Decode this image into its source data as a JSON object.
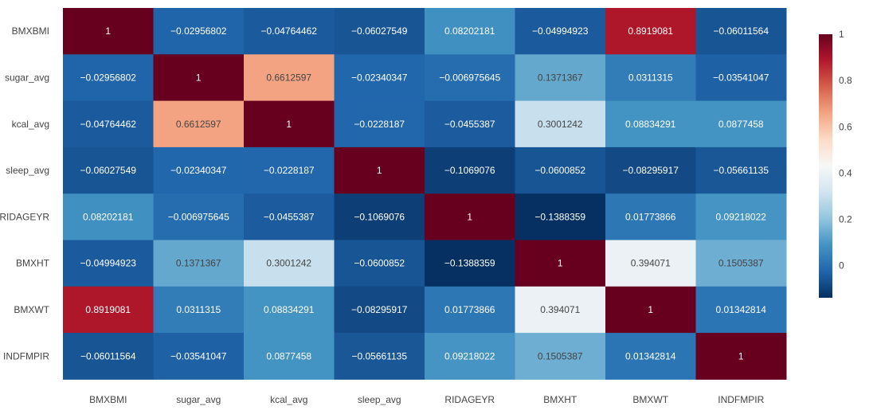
{
  "chart_data": {
    "type": "heatmap",
    "title": "",
    "xlabel": "",
    "ylabel": "",
    "x": [
      "BMXBMI",
      "sugar_avg",
      "kcal_avg",
      "sleep_avg",
      "RIDAGEYR",
      "BMXHT",
      "BMXWT",
      "INDFMPIR"
    ],
    "y": [
      "BMXBMI",
      "sugar_avg",
      "kcal_avg",
      "sleep_avg",
      "RIDAGEYR",
      "BMXHT",
      "BMXWT",
      "INDFMPIR"
    ],
    "z": [
      [
        1,
        -0.02956802,
        -0.04764462,
        -0.06027549,
        0.08202181,
        -0.04994923,
        0.8919081,
        -0.06011564
      ],
      [
        -0.02956802,
        1,
        0.6612597,
        -0.02340347,
        -0.006975645,
        0.1371367,
        0.0311315,
        -0.03541047
      ],
      [
        -0.04764462,
        0.6612597,
        1,
        -0.0228187,
        -0.0455387,
        0.3001242,
        0.08834291,
        0.0877458
      ],
      [
        -0.06027549,
        -0.02340347,
        -0.0228187,
        1,
        -0.1069076,
        -0.0600852,
        -0.08295917,
        -0.05661135
      ],
      [
        0.08202181,
        -0.006975645,
        -0.0455387,
        -0.1069076,
        1,
        -0.1388359,
        0.01773866,
        0.09218022
      ],
      [
        -0.04994923,
        0.1371367,
        0.3001242,
        -0.0600852,
        -0.1388359,
        1,
        0.394071,
        0.1505387
      ],
      [
        0.8919081,
        0.0311315,
        0.08834291,
        -0.08295917,
        0.01773866,
        0.394071,
        1,
        0.01342814
      ],
      [
        -0.06011564,
        -0.03541047,
        0.0877458,
        -0.05661135,
        0.09218022,
        0.1505387,
        0.01342814,
        1
      ]
    ],
    "text": [
      [
        "1",
        "−0.02956802",
        "−0.04764462",
        "−0.06027549",
        "0.08202181",
        "−0.04994923",
        "0.8919081",
        "−0.06011564"
      ],
      [
        "−0.02956802",
        "1",
        "0.6612597",
        "−0.02340347",
        "−0.006975645",
        "0.1371367",
        "0.0311315",
        "−0.03541047"
      ],
      [
        "−0.04764462",
        "0.6612597",
        "1",
        "−0.0228187",
        "−0.0455387",
        "0.3001242",
        "0.08834291",
        "0.0877458"
      ],
      [
        "−0.06027549",
        "−0.02340347",
        "−0.0228187",
        "1",
        "−0.1069076",
        "−0.0600852",
        "−0.08295917",
        "−0.05661135"
      ],
      [
        "0.08202181",
        "−0.006975645",
        "−0.0455387",
        "−0.1069076",
        "1",
        "−0.1388359",
        "0.01773866",
        "0.09218022"
      ],
      [
        "−0.04994923",
        "0.1371367",
        "0.3001242",
        "−0.0600852",
        "−0.1388359",
        "1",
        "0.394071",
        "0.1505387"
      ],
      [
        "0.8919081",
        "0.0311315",
        "0.08834291",
        "−0.08295917",
        "0.01773866",
        "0.394071",
        "1",
        "0.01342814"
      ],
      [
        "−0.06011564",
        "−0.03541047",
        "0.0877458",
        "−0.05661135",
        "0.09218022",
        "0.1505387",
        "0.01342814",
        "1"
      ]
    ],
    "zrange": [
      -0.1388359,
      1
    ],
    "colorscale": "RdBu (reversed)",
    "colorbar": {
      "ticks": [
        0,
        0.2,
        0.4,
        0.6,
        0.8,
        1
      ],
      "tick_labels": [
        "0",
        "0.2",
        "0.4",
        "0.6",
        "0.8",
        "1"
      ]
    },
    "grid": false,
    "legend": "colorbar right"
  }
}
